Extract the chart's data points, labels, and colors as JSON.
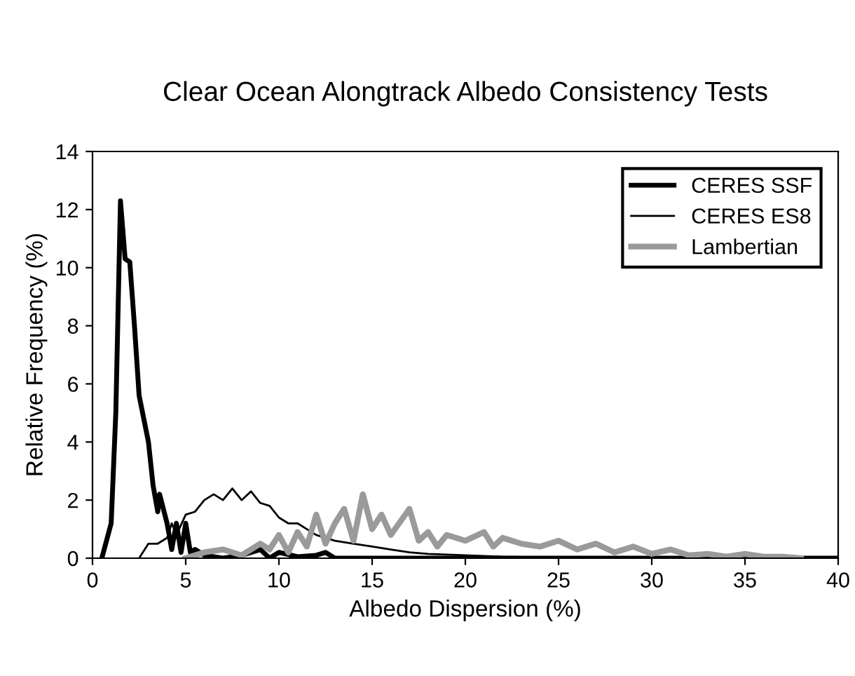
{
  "chart_data": {
    "type": "line",
    "title": "Clear Ocean Alongtrack Albedo Consistency Tests",
    "xlabel": "Albedo Dispersion (%)",
    "ylabel": "Relative Frequency (%)",
    "xlim": [
      0,
      40
    ],
    "xticks": [
      0,
      5,
      10,
      15,
      20,
      25,
      30,
      35,
      40
    ],
    "ylim": [
      0,
      14
    ],
    "yticks": [
      0,
      2,
      4,
      6,
      8,
      10,
      12,
      14
    ],
    "grid": false,
    "legend": "top right",
    "marker": "none",
    "line_style": "solid",
    "series": [
      {
        "name": "CERES SSF",
        "color": "#000000",
        "x": [
          0.5,
          1,
          1.25,
          1.5,
          1.75,
          2,
          2.25,
          2.5,
          3,
          3.25,
          3.5,
          3.6,
          4,
          4.25,
          4.5,
          4.75,
          5,
          5.25,
          5.5,
          6,
          7,
          8,
          9,
          9.5,
          10,
          11,
          12,
          12.5,
          13,
          15,
          20,
          30,
          40
        ],
        "values": [
          0,
          1.2,
          5,
          12.3,
          10.3,
          10.2,
          8,
          5.6,
          4,
          2.5,
          1.6,
          2.2,
          1.2,
          0.3,
          1.2,
          0.2,
          1.2,
          0.2,
          0.3,
          0.1,
          0,
          0.1,
          0.3,
          0,
          0.2,
          0.05,
          0.1,
          0.2,
          0,
          0,
          0,
          0,
          0
        ]
      },
      {
        "name": "CERES ES8",
        "color": "#000000",
        "x": [
          2.5,
          3,
          3.5,
          4,
          4.25,
          4.5,
          5,
          5.5,
          6,
          6.5,
          7,
          7.5,
          8,
          8.5,
          9,
          9.5,
          10,
          10.5,
          11,
          11.5,
          12,
          13,
          14,
          15,
          16,
          17,
          18,
          20,
          22,
          25,
          30
        ],
        "values": [
          0,
          0.5,
          0.5,
          0.7,
          1.2,
          0.8,
          1.5,
          1.6,
          2.0,
          2.2,
          2.0,
          2.4,
          2.0,
          2.3,
          1.9,
          1.8,
          1.4,
          1.2,
          1.2,
          1.0,
          0.8,
          0.6,
          0.5,
          0.4,
          0.3,
          0.2,
          0.15,
          0.1,
          0.05,
          0.02,
          0
        ]
      },
      {
        "name": "Lambertian",
        "color": "#9a9a9a",
        "x": [
          5,
          6,
          7,
          8,
          9,
          9.5,
          10,
          10.5,
          11,
          11.5,
          12,
          12.5,
          13,
          13.5,
          14,
          14.5,
          15,
          15.5,
          16,
          17,
          17.5,
          18,
          18.5,
          19,
          20,
          21,
          21.5,
          22,
          23,
          24,
          25,
          26,
          27,
          28,
          29,
          30,
          31,
          32,
          33,
          34,
          35,
          36,
          37,
          38
        ],
        "values": [
          0,
          0.2,
          0.3,
          0.1,
          0.5,
          0.3,
          0.8,
          0.2,
          0.9,
          0.4,
          1.5,
          0.5,
          1.2,
          1.7,
          0.6,
          2.2,
          1.0,
          1.5,
          0.8,
          1.7,
          0.6,
          0.9,
          0.4,
          0.8,
          0.6,
          0.9,
          0.4,
          0.7,
          0.5,
          0.4,
          0.6,
          0.3,
          0.5,
          0.2,
          0.4,
          0.15,
          0.3,
          0.1,
          0.15,
          0.05,
          0.15,
          0.05,
          0.05,
          0
        ]
      }
    ]
  }
}
